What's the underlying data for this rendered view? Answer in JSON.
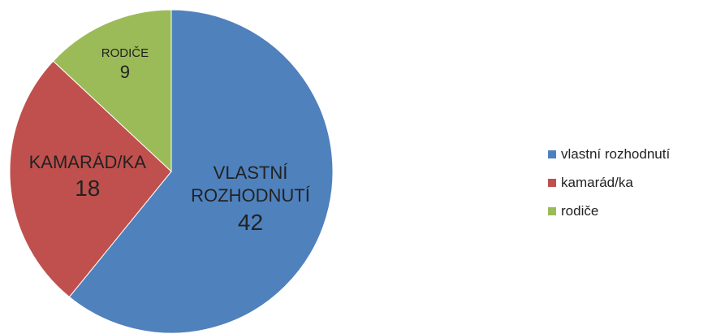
{
  "chart_data": {
    "type": "pie",
    "categories": [
      "vlastní rozhodnutí",
      "kamarád/ka",
      "rodiče"
    ],
    "slice_labels": [
      "VLASTNÍ ROZHODNUTÍ",
      "KAMARÁD/KA",
      "RODIČE"
    ],
    "values": [
      42,
      18,
      9
    ],
    "colors": [
      "#4f81bd",
      "#c0504d",
      "#9bbb59"
    ],
    "legend": "right"
  }
}
